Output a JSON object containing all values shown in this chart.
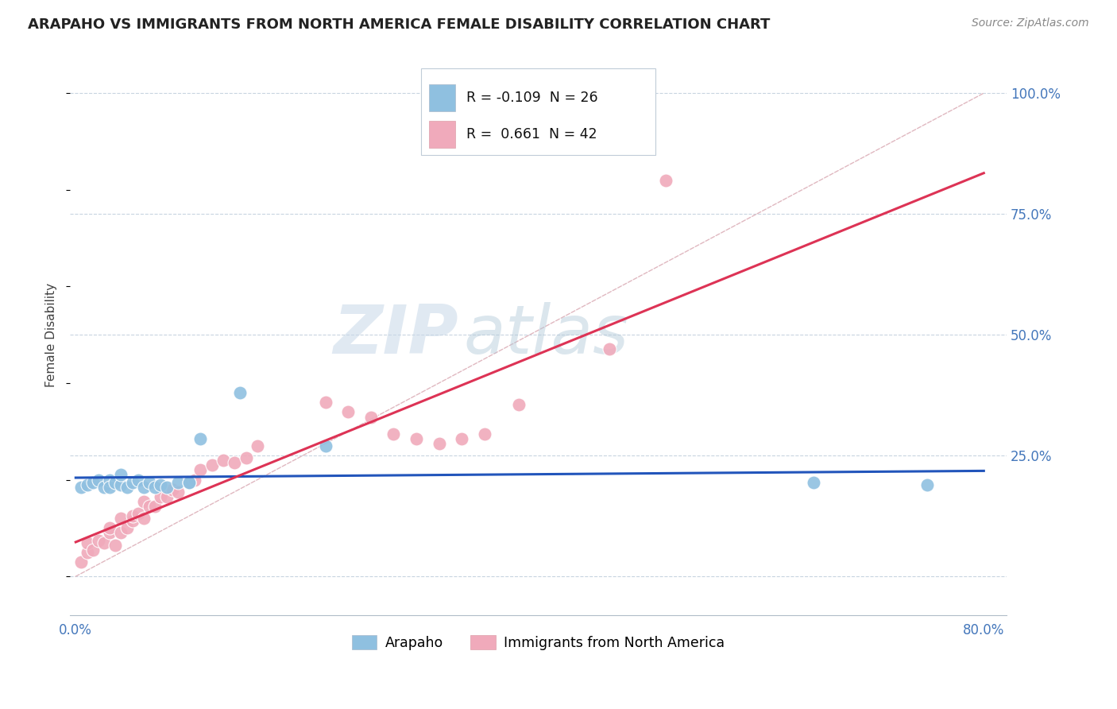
{
  "title": "ARAPAHO VS IMMIGRANTS FROM NORTH AMERICA FEMALE DISABILITY CORRELATION CHART",
  "source_text": "Source: ZipAtlas.com",
  "ylabel": "Female Disability",
  "xlim": [
    -0.005,
    0.82
  ],
  "ylim": [
    -0.08,
    1.08
  ],
  "x_tick_positions": [
    0.0,
    0.2,
    0.4,
    0.6,
    0.8
  ],
  "x_tick_labels": [
    "0.0%",
    "",
    "",
    "",
    "80.0%"
  ],
  "y_tick_positions": [
    0.0,
    0.25,
    0.5,
    0.75,
    1.0
  ],
  "y_tick_labels": [
    "",
    "25.0%",
    "50.0%",
    "75.0%",
    "100.0%"
  ],
  "background_color": "#ffffff",
  "grid_color": "#c8d4e0",
  "arapaho_color": "#8fc0e0",
  "immigrants_color": "#f0aabb",
  "arapaho_line_color": "#2255bb",
  "immigrants_line_color": "#dd3355",
  "ref_line_color": "#e0b8c0",
  "legend_r_arapaho": "-0.109",
  "legend_n_arapaho": 26,
  "legend_r_immigrants": "0.661",
  "legend_n_immigrants": 42,
  "watermark_zip": "ZIP",
  "watermark_atlas": "atlas",
  "arapaho_x": [
    0.005,
    0.01,
    0.015,
    0.02,
    0.025,
    0.03,
    0.03,
    0.035,
    0.04,
    0.04,
    0.045,
    0.05,
    0.055,
    0.06,
    0.065,
    0.07,
    0.075,
    0.08,
    0.09,
    0.1,
    0.1,
    0.11,
    0.145,
    0.22,
    0.65,
    0.75
  ],
  "arapaho_y": [
    0.185,
    0.19,
    0.195,
    0.2,
    0.185,
    0.2,
    0.185,
    0.195,
    0.19,
    0.21,
    0.185,
    0.195,
    0.2,
    0.185,
    0.195,
    0.185,
    0.19,
    0.185,
    0.195,
    0.195,
    0.195,
    0.285,
    0.38,
    0.27,
    0.195,
    0.19
  ],
  "immigrants_x": [
    0.005,
    0.01,
    0.01,
    0.015,
    0.02,
    0.025,
    0.03,
    0.03,
    0.035,
    0.04,
    0.04,
    0.045,
    0.05,
    0.05,
    0.055,
    0.06,
    0.06,
    0.065,
    0.07,
    0.075,
    0.08,
    0.085,
    0.09,
    0.1,
    0.105,
    0.11,
    0.12,
    0.13,
    0.14,
    0.15,
    0.16,
    0.22,
    0.24,
    0.26,
    0.28,
    0.3,
    0.32,
    0.34,
    0.36,
    0.39,
    0.47,
    0.52
  ],
  "immigrants_y": [
    0.03,
    0.05,
    0.07,
    0.055,
    0.075,
    0.07,
    0.09,
    0.1,
    0.065,
    0.09,
    0.12,
    0.1,
    0.115,
    0.125,
    0.13,
    0.12,
    0.155,
    0.145,
    0.145,
    0.165,
    0.165,
    0.18,
    0.175,
    0.195,
    0.2,
    0.22,
    0.23,
    0.24,
    0.235,
    0.245,
    0.27,
    0.36,
    0.34,
    0.33,
    0.295,
    0.285,
    0.275,
    0.285,
    0.295,
    0.355,
    0.47,
    0.82
  ]
}
